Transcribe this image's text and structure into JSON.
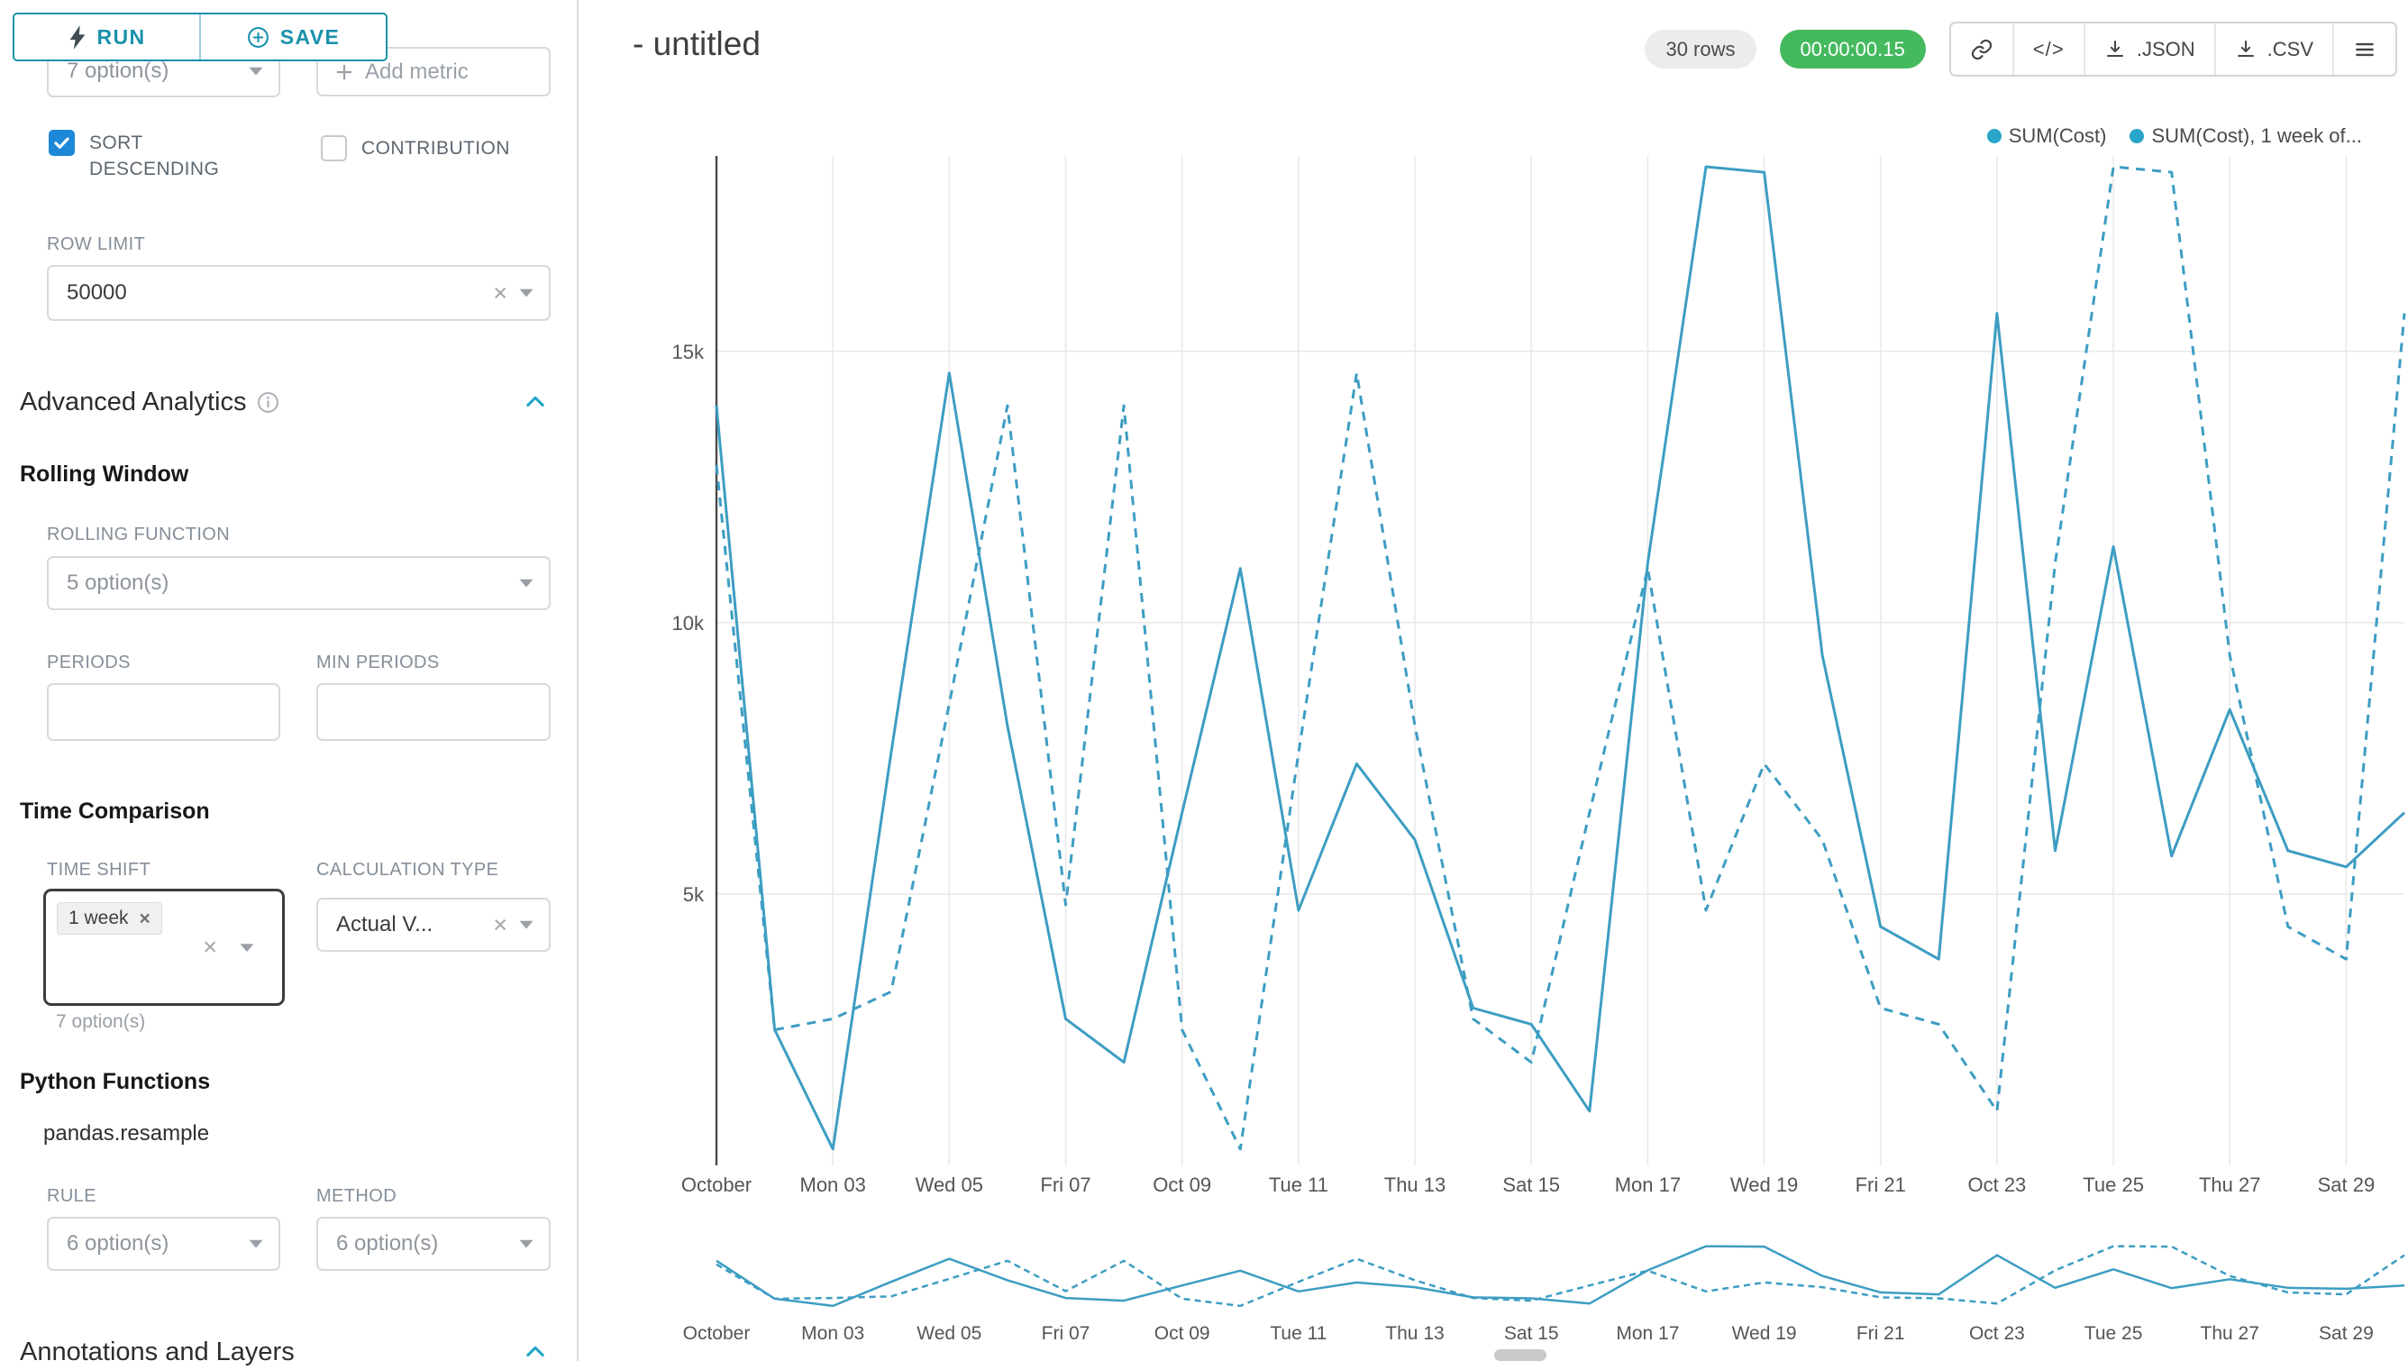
{
  "colors": {
    "accent": "#1a91ad",
    "series_line": "#3d9dc2",
    "legend_dot": "#28a5c8",
    "timer_badge_bg": "#44b95e",
    "checkbox_checked_bg": "#1e88d8"
  },
  "icons": {
    "run": "lightning-bolt",
    "save": "plus-circle",
    "add_metric": "plus",
    "info": "info-circle",
    "section_collapse": "chevron-up",
    "select_caret": "caret-down",
    "clear": "x",
    "share": "link",
    "embed": "code",
    "export": "download",
    "menu": "hamburger",
    "checkbox": "check"
  },
  "toolbar": {
    "run_label": "RUN",
    "save_label": "SAVE"
  },
  "sidebar": {
    "metric_select_value": "7 option(s)",
    "add_metric_label": "Add metric",
    "sort_descending_label": "SORT DESCENDING",
    "contribution_label": "CONTRIBUTION",
    "row_limit_label": "ROW LIMIT",
    "row_limit_value": "50000",
    "advanced_analytics_title": "Advanced Analytics",
    "rolling_window_title": "Rolling Window",
    "rolling_function_label": "ROLLING FUNCTION",
    "rolling_function_value": "5 option(s)",
    "periods_label": "PERIODS",
    "min_periods_label": "MIN PERIODS",
    "time_comparison_title": "Time Comparison",
    "time_shift_label": "TIME SHIFT",
    "time_shift_tag": "1 week",
    "time_shift_hint": "7 option(s)",
    "calculation_type_label": "CALCULATION TYPE",
    "calculation_type_value": "Actual V...",
    "python_functions_title": "Python Functions",
    "python_functions_subtitle": "pandas.resample",
    "rule_label": "RULE",
    "rule_value": "6 option(s)",
    "method_label": "METHOD",
    "method_value": "6 option(s)",
    "annotations_title": "Annotations and Layers"
  },
  "header": {
    "title": "- untitled",
    "rows_badge": "30 rows",
    "timer_badge": "00:00:00.15",
    "code_label": "</>",
    "json_label": ".JSON",
    "csv_label": ".CSV"
  },
  "legend": [
    {
      "label": "SUM(Cost)"
    },
    {
      "label": "SUM(Cost), 1 week of..."
    }
  ],
  "chart_data": {
    "type": "line",
    "title": "",
    "xlabel": "",
    "ylabel": "",
    "x_unit": "day (October, daily points, 30 rows)",
    "x_tick_labels": [
      "October",
      "Mon 03",
      "Wed 05",
      "Fri 07",
      "Oct 09",
      "Tue 11",
      "Thu 13",
      "Sat 15",
      "Mon 17",
      "Wed 19",
      "Fri 21",
      "Oct 23",
      "Tue 25",
      "Thu 27",
      "Sat 29"
    ],
    "x_tick_day_indexes": [
      0,
      2,
      4,
      6,
      8,
      10,
      12,
      14,
      16,
      18,
      20,
      22,
      24,
      26,
      28
    ],
    "y_ticks": [
      5000,
      10000,
      15000
    ],
    "y_tick_labels": [
      "5k",
      "10k",
      "15k"
    ],
    "ylim": [
      0,
      18600
    ],
    "grid": true,
    "legend_position": "top-right",
    "series": [
      {
        "name": "SUM(Cost)",
        "line_style": "solid",
        "values": [
          14000,
          2500,
          300,
          7600,
          14600,
          8100,
          2700,
          1900,
          6500,
          11000,
          4700,
          7400,
          6000,
          2900,
          2600,
          1000,
          11100,
          18400,
          18300,
          9400,
          4400,
          3800,
          15700,
          5800,
          11400,
          5700,
          8400,
          5800,
          5500,
          6500
        ]
      },
      {
        "name": "SUM(Cost), 1 week offset",
        "line_style": "dashed",
        "values": [
          12900,
          2500,
          2700,
          3200,
          8500,
          14000,
          4800,
          14000,
          2500,
          300,
          7600,
          14600,
          8100,
          2700,
          1900,
          6500,
          11000,
          4700,
          7400,
          6000,
          2900,
          2600,
          1000,
          11100,
          18400,
          18300,
          9400,
          4400,
          3800,
          15700
        ]
      }
    ]
  }
}
